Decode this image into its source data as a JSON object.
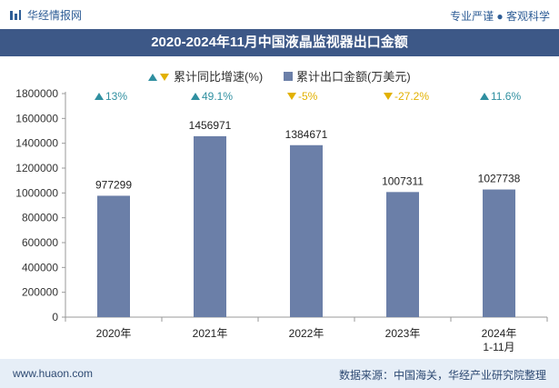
{
  "header": {
    "brand_name": "华经情报网",
    "slogan": "专业严谨 ● 客观科学"
  },
  "title": "2020-2024年11月中国液晶监视器出口金额",
  "footer": {
    "website": "www.huaon.com",
    "source": "数据来源：中国海关，华经产业研究院整理"
  },
  "colors": {
    "bar": "#6b7fa8",
    "up": "#2f8fa0",
    "down": "#e2b100",
    "title_bg": "#3d5887"
  },
  "chart_data": {
    "type": "bar",
    "title": "2020-2024年11月中国液晶监视器出口金额",
    "categories": [
      "2020年",
      "2021年",
      "2022年",
      "2023年",
      "2024年\n1-11月"
    ],
    "category_lines": [
      [
        "2020年"
      ],
      [
        "2021年"
      ],
      [
        "2022年"
      ],
      [
        "2023年"
      ],
      [
        "2024年",
        "1-11月"
      ]
    ],
    "series": [
      {
        "name": "累计出口金额(万美元)",
        "values": [
          977299,
          1456971,
          1384671,
          1007311,
          1027738
        ]
      }
    ],
    "growth": {
      "name": "累计同比增速(%)",
      "labels": [
        "13%",
        "49.1%",
        "-5%",
        "-27.2%",
        "11.6%"
      ],
      "values": [
        13,
        49.1,
        -5,
        -27.2,
        11.6
      ]
    },
    "value_labels": [
      "977299",
      "1456971",
      "1384671",
      "1007311",
      "1027738"
    ],
    "ylim": [
      0,
      1800000
    ],
    "yticks": [
      0,
      200000,
      400000,
      600000,
      800000,
      1000000,
      1200000,
      1400000,
      1600000,
      1800000
    ],
    "ytick_labels": [
      "0",
      "200000",
      "400000",
      "600000",
      "800000",
      "1000000",
      "1200000",
      "1400000",
      "1600000",
      "1800000"
    ],
    "legend": {
      "growth_label": "累计同比增速(%)",
      "bar_label": "累计出口金额(万美元)",
      "position": "top"
    },
    "grid": false
  }
}
